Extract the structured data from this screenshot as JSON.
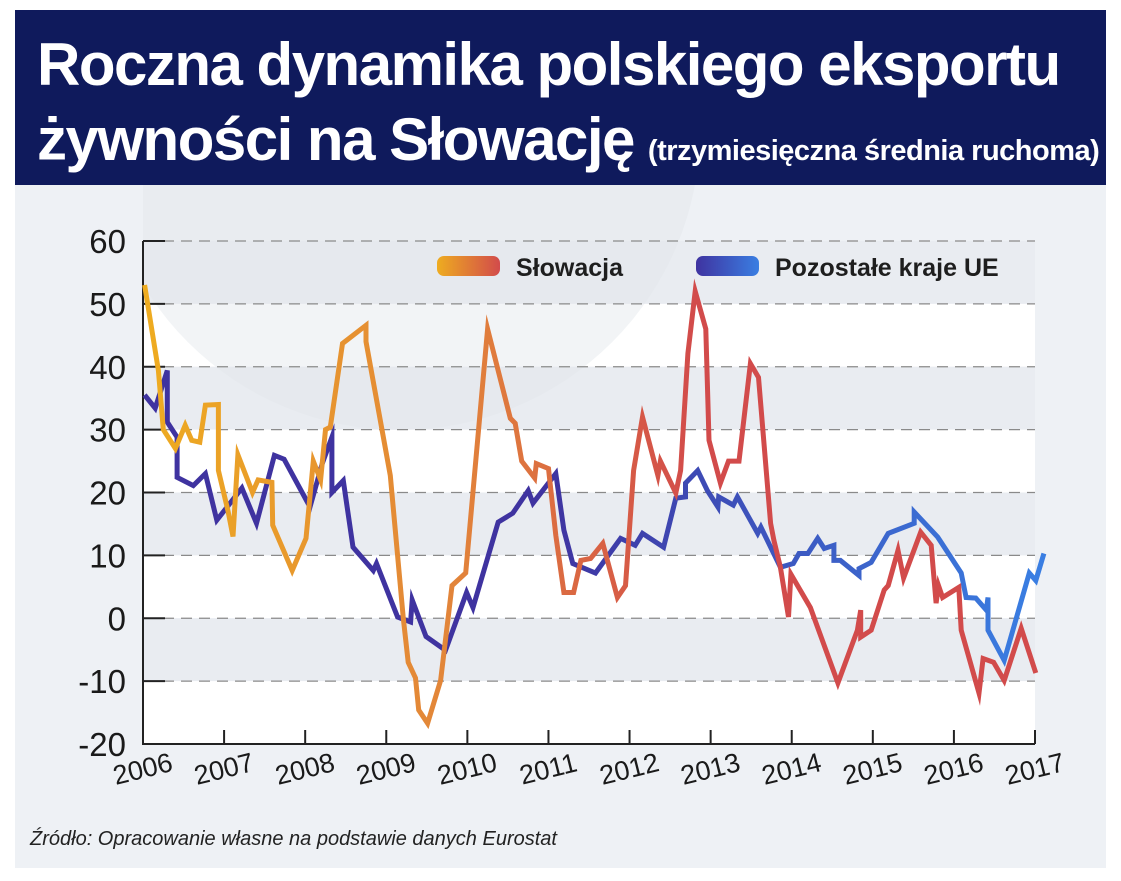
{
  "header": {
    "title_line1": "Roczna dynamika polskiego eksportu",
    "title_line2": "żywności na Słowację",
    "subtitle": "(trzymiesięczna średnia ruchoma)"
  },
  "source": "Źródło: Opracowanie własne na podstawie danych Eurostat",
  "colors": {
    "banner": "#0f1a5c",
    "background": "#eef1f5",
    "slovakia_start": "#eeac20",
    "slovakia_mid": "#e2843a",
    "slovakia_end": "#d24b4b",
    "eu_start": "#3f33a0",
    "eu_end": "#3a7ee2"
  },
  "chart_data": {
    "type": "line",
    "title": "Roczna dynamika polskiego eksportu żywności na Słowację (trzymiesięczna średnia ruchoma)",
    "xlabel": "",
    "ylabel": "",
    "xlim": [
      2006,
      2017
    ],
    "ylim": [
      -20,
      60
    ],
    "yticks": [
      60,
      50,
      40,
      30,
      20,
      10,
      0,
      -10,
      -20
    ],
    "xticks": [
      "2006",
      "2007",
      "2008",
      "2009",
      "2010",
      "2011",
      "2012",
      "2013",
      "2014",
      "2015",
      "2016",
      "2017"
    ],
    "grid": "horizontal dashed",
    "legend": "top-right",
    "series": [
      {
        "name": "Słowacja",
        "points": [
          [
            2006.02,
            53
          ],
          [
            2006.19,
            39.4
          ],
          [
            2006.25,
            30
          ],
          [
            2006.4,
            27
          ],
          [
            2006.52,
            30.7
          ],
          [
            2006.6,
            28.3
          ],
          [
            2006.7,
            28
          ],
          [
            2006.77,
            33.9
          ],
          [
            2006.93,
            34
          ],
          [
            2006.93,
            23.5
          ],
          [
            2007.05,
            17
          ],
          [
            2007.11,
            13
          ],
          [
            2007.17,
            26
          ],
          [
            2007.35,
            20
          ],
          [
            2007.42,
            22
          ],
          [
            2007.59,
            21.6
          ],
          [
            2007.6,
            14.8
          ],
          [
            2007.84,
            7.6
          ],
          [
            2008.01,
            12.7
          ],
          [
            2008.1,
            25
          ],
          [
            2008.19,
            22
          ],
          [
            2008.25,
            30
          ],
          [
            2008.31,
            30.4
          ],
          [
            2008.46,
            43.7
          ],
          [
            2008.75,
            46.6
          ],
          [
            2008.75,
            44
          ],
          [
            2009.05,
            22.7
          ],
          [
            2009.21,
            0
          ],
          [
            2009.27,
            -7
          ],
          [
            2009.36,
            -9.5
          ],
          [
            2009.4,
            -14.6
          ],
          [
            2009.51,
            -16.7
          ],
          [
            2009.67,
            -9.9
          ],
          [
            2009.81,
            5.2
          ],
          [
            2009.98,
            7.2
          ],
          [
            2010.25,
            46
          ],
          [
            2010.53,
            31.8
          ],
          [
            2010.59,
            31
          ],
          [
            2010.67,
            25
          ],
          [
            2010.83,
            22.3
          ],
          [
            2010.85,
            24.6
          ],
          [
            2011.0,
            23.8
          ],
          [
            2011.09,
            13.2
          ],
          [
            2011.19,
            4.1
          ],
          [
            2011.31,
            4.1
          ],
          [
            2011.4,
            9.2
          ],
          [
            2011.52,
            9.5
          ],
          [
            2011.67,
            11.9
          ],
          [
            2011.85,
            3.3
          ],
          [
            2011.95,
            5.2
          ],
          [
            2012.05,
            23.5
          ],
          [
            2012.16,
            32
          ],
          [
            2012.35,
            22.7
          ],
          [
            2012.38,
            25
          ],
          [
            2012.57,
            19.9
          ],
          [
            2012.63,
            23.5
          ],
          [
            2012.72,
            42.1
          ],
          [
            2012.81,
            52
          ],
          [
            2012.94,
            46
          ],
          [
            2012.98,
            28.3
          ],
          [
            2013.12,
            21.5
          ],
          [
            2013.22,
            25
          ],
          [
            2013.35,
            25
          ],
          [
            2013.49,
            40.5
          ],
          [
            2013.59,
            38.3
          ],
          [
            2013.74,
            15.1
          ],
          [
            2013.78,
            12.4
          ],
          [
            2013.86,
            8.1
          ],
          [
            2013.96,
            0.2
          ],
          [
            2013.99,
            7
          ],
          [
            2014.23,
            1.7
          ],
          [
            2014.57,
            -10.3
          ],
          [
            2014.81,
            -1.9
          ],
          [
            2014.85,
            1.3
          ],
          [
            2014.85,
            -3
          ],
          [
            2014.98,
            -1.9
          ],
          [
            2015.14,
            4.5
          ],
          [
            2015.19,
            5.2
          ],
          [
            2015.31,
            10.8
          ],
          [
            2015.38,
            6.4
          ],
          [
            2015.59,
            13.7
          ],
          [
            2015.72,
            11.6
          ],
          [
            2015.78,
            2.4
          ],
          [
            2015.81,
            5.2
          ],
          [
            2015.86,
            3.3
          ],
          [
            2016.06,
            4.9
          ],
          [
            2016.09,
            -1.9
          ],
          [
            2016.31,
            -11.9
          ],
          [
            2016.36,
            -6.4
          ],
          [
            2016.49,
            -7
          ],
          [
            2016.62,
            -9.9
          ],
          [
            2016.83,
            -1.6
          ],
          [
            2017.01,
            -8.7
          ]
        ]
      },
      {
        "name": "Pozostałe kraje UE",
        "points": [
          [
            2006.02,
            35.5
          ],
          [
            2006.15,
            33.4
          ],
          [
            2006.3,
            39.4
          ],
          [
            2006.3,
            31.2
          ],
          [
            2006.42,
            28.8
          ],
          [
            2006.42,
            22.4
          ],
          [
            2006.62,
            21.1
          ],
          [
            2006.77,
            23
          ],
          [
            2006.91,
            15.6
          ],
          [
            2007.22,
            20.7
          ],
          [
            2007.4,
            15.1
          ],
          [
            2007.62,
            25.9
          ],
          [
            2007.74,
            25.3
          ],
          [
            2008.06,
            17.7
          ],
          [
            2008.21,
            24.6
          ],
          [
            2008.33,
            28.8
          ],
          [
            2008.33,
            20
          ],
          [
            2008.47,
            21.9
          ],
          [
            2008.59,
            11.3
          ],
          [
            2008.84,
            7.6
          ],
          [
            2008.88,
            8.7
          ],
          [
            2009.14,
            0.2
          ],
          [
            2009.3,
            -0.6
          ],
          [
            2009.32,
            2.9
          ],
          [
            2009.49,
            -2.9
          ],
          [
            2009.73,
            -5.1
          ],
          [
            2009.99,
            4.1
          ],
          [
            2010.07,
            1.7
          ],
          [
            2010.38,
            15.3
          ],
          [
            2010.56,
            16.7
          ],
          [
            2010.75,
            20.3
          ],
          [
            2010.81,
            18.3
          ],
          [
            2011.09,
            23
          ],
          [
            2011.19,
            14
          ],
          [
            2011.3,
            8.7
          ],
          [
            2011.58,
            7.2
          ],
          [
            2011.89,
            12.7
          ],
          [
            2012.07,
            11.6
          ],
          [
            2012.16,
            13.5
          ],
          [
            2012.42,
            11.3
          ],
          [
            2012.57,
            19.1
          ],
          [
            2012.69,
            19.3
          ],
          [
            2012.69,
            21.5
          ],
          [
            2012.84,
            23.5
          ],
          [
            2012.96,
            20.3
          ],
          [
            2013.09,
            17.7
          ],
          [
            2013.1,
            19.3
          ],
          [
            2013.28,
            18
          ],
          [
            2013.33,
            19.3
          ],
          [
            2013.58,
            13.5
          ],
          [
            2013.62,
            14.5
          ],
          [
            2013.86,
            8.1
          ],
          [
            2014.02,
            8.7
          ],
          [
            2014.09,
            10.3
          ],
          [
            2014.2,
            10.3
          ],
          [
            2014.32,
            12.7
          ],
          [
            2014.4,
            11.1
          ],
          [
            2014.52,
            11.6
          ],
          [
            2014.52,
            9.2
          ],
          [
            2014.6,
            9.2
          ],
          [
            2014.83,
            6.8
          ],
          [
            2014.83,
            7.9
          ],
          [
            2014.98,
            8.9
          ],
          [
            2015.19,
            13.5
          ],
          [
            2015.51,
            15.1
          ],
          [
            2015.51,
            16.9
          ],
          [
            2015.8,
            12.9
          ],
          [
            2016.09,
            7.2
          ],
          [
            2016.15,
            3.3
          ],
          [
            2016.27,
            3.2
          ],
          [
            2016.4,
            1.3
          ],
          [
            2016.42,
            3.3
          ],
          [
            2016.42,
            -1.9
          ],
          [
            2016.62,
            -6.7
          ],
          [
            2016.93,
            7.2
          ],
          [
            2017.01,
            6
          ],
          [
            2017.11,
            10.3
          ]
        ]
      }
    ]
  }
}
